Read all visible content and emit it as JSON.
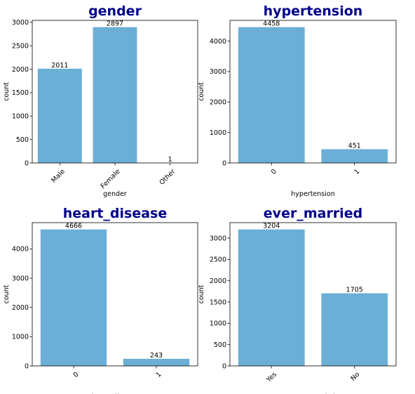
{
  "chart_data": [
    {
      "type": "bar",
      "title": "gender",
      "xlabel": "gender",
      "ylabel": "count",
      "categories": [
        "Male",
        "Female",
        "Other"
      ],
      "values": [
        2011,
        2897,
        1
      ],
      "ylim": [
        0,
        3042
      ],
      "yticks": [
        0,
        500,
        1000,
        1500,
        2000,
        2500,
        3000
      ],
      "xtick_rotation": 45,
      "color": "#6baed6"
    },
    {
      "type": "bar",
      "title": "hypertension",
      "xlabel": "hypertension",
      "ylabel": "count",
      "categories": [
        "0",
        "1"
      ],
      "values": [
        4458,
        451
      ],
      "ylim": [
        0,
        4681
      ],
      "yticks": [
        0,
        1000,
        2000,
        3000,
        4000
      ],
      "xtick_rotation": 45,
      "color": "#6baed6"
    },
    {
      "type": "bar",
      "title": "heart_disease",
      "xlabel": "heart_disease",
      "ylabel": "count",
      "categories": [
        "0",
        "1"
      ],
      "values": [
        4666,
        243
      ],
      "ylim": [
        0,
        4899
      ],
      "yticks": [
        0,
        1000,
        2000,
        3000,
        4000
      ],
      "xtick_rotation": 45,
      "color": "#6baed6"
    },
    {
      "type": "bar",
      "title": "ever_married",
      "xlabel": "ever_married",
      "ylabel": "count",
      "categories": [
        "Yes",
        "No"
      ],
      "values": [
        3204,
        1705
      ],
      "ylim": [
        0,
        3364
      ],
      "yticks": [
        0,
        500,
        1000,
        1500,
        2000,
        2500,
        3000
      ],
      "xtick_rotation": 45,
      "color": "#6baed6"
    }
  ]
}
